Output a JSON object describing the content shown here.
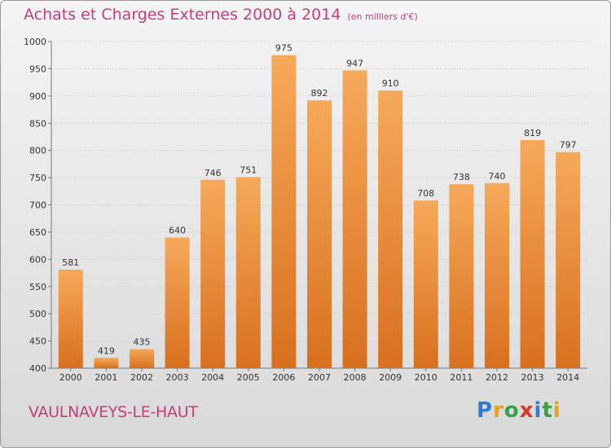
{
  "title": "Achats et Charges Externes 2000 à 2014",
  "unit_note": "(en milliers d'€)",
  "location": "VAULNAVEYS-LE-HAUT",
  "brand": "Proxiti",
  "colors": {
    "bar_top": "#f6a95a",
    "bar_bottom": "#d8701e",
    "title": "#c2407a"
  },
  "chart_data": {
    "type": "bar",
    "title": "Achats et Charges Externes 2000 à 2014",
    "categories": [
      "2000",
      "2001",
      "2002",
      "2003",
      "2004",
      "2005",
      "2006",
      "2007",
      "2008",
      "2009",
      "2010",
      "2011",
      "2012",
      "2013",
      "2014"
    ],
    "values": [
      581,
      419,
      435,
      640,
      746,
      751,
      975,
      892,
      947,
      910,
      708,
      738,
      740,
      819,
      797
    ],
    "ylim": [
      400,
      1000
    ],
    "yticks": [
      400,
      450,
      500,
      550,
      600,
      650,
      700,
      750,
      800,
      850,
      900,
      950,
      1000
    ],
    "grid": true,
    "xlabel": "",
    "ylabel": ""
  }
}
